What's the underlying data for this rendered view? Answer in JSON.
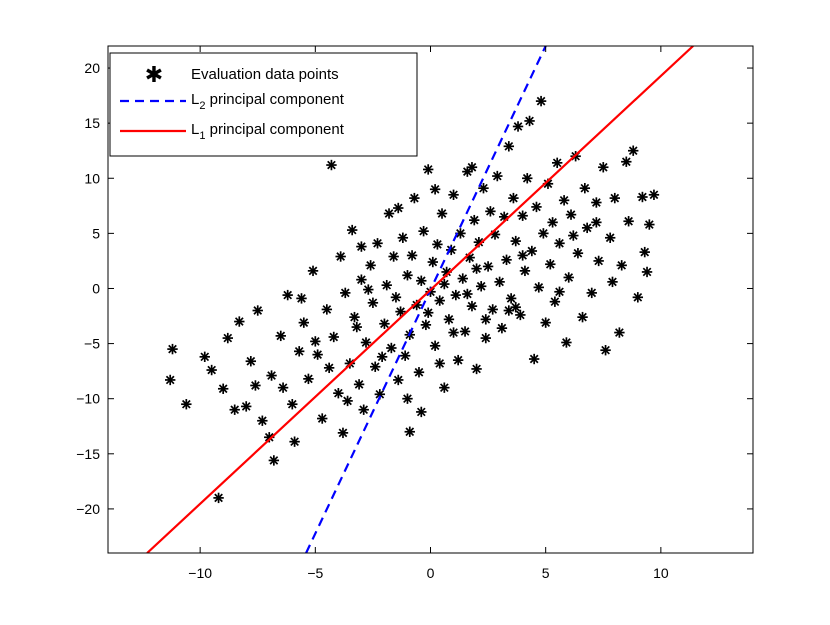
{
  "chart_data": {
    "type": "scatter",
    "title": "",
    "xlabel": "",
    "ylabel": "",
    "xlim": [
      -14,
      14
    ],
    "ylim": [
      -24,
      22
    ],
    "xticks": [
      -10,
      -5,
      0,
      5,
      10
    ],
    "yticks": [
      -20,
      -15,
      -10,
      -5,
      0,
      5,
      10,
      15,
      20
    ],
    "tick_labels_x": [
      "−10",
      "−5",
      "0",
      "5",
      "10"
    ],
    "tick_labels_y": [
      "−20",
      "−15",
      "−10",
      "−5",
      "0",
      "5",
      "10",
      "15",
      "20"
    ],
    "grid": false,
    "legend_position": "top-left",
    "series": [
      {
        "name": "Evaluation data points",
        "kind": "points",
        "marker": "asterisk",
        "color": "#000000",
        "points": [
          [
            -11.2,
            -5.5
          ],
          [
            -11.3,
            -8.3
          ],
          [
            -10.6,
            -10.5
          ],
          [
            -9.8,
            -6.2
          ],
          [
            -9.5,
            -7.4
          ],
          [
            -9.2,
            -19.0
          ],
          [
            -9.0,
            -9.1
          ],
          [
            -8.8,
            -4.5
          ],
          [
            -8.5,
            -11.0
          ],
          [
            -8.3,
            -3.0
          ],
          [
            -8.0,
            -10.7
          ],
          [
            -7.8,
            -6.6
          ],
          [
            -7.5,
            -2.0
          ],
          [
            -7.3,
            -12.0
          ],
          [
            -7.0,
            -13.5
          ],
          [
            -6.8,
            -15.6
          ],
          [
            -6.9,
            -7.9
          ],
          [
            -6.5,
            -4.3
          ],
          [
            -6.2,
            -0.6
          ],
          [
            -6.0,
            -10.5
          ],
          [
            -5.9,
            -13.9
          ],
          [
            -5.7,
            -5.7
          ],
          [
            -5.5,
            -3.1
          ],
          [
            -5.3,
            -8.2
          ],
          [
            -5.1,
            1.6
          ],
          [
            -4.9,
            -6.0
          ],
          [
            -4.7,
            -11.8
          ],
          [
            -4.5,
            -1.9
          ],
          [
            -4.3,
            11.2
          ],
          [
            -4.2,
            -4.4
          ],
          [
            -4.0,
            -9.5
          ],
          [
            -3.9,
            2.9
          ],
          [
            -3.8,
            -13.1
          ],
          [
            -3.7,
            -0.4
          ],
          [
            -3.5,
            -6.8
          ],
          [
            -3.4,
            5.3
          ],
          [
            -3.3,
            -2.6
          ],
          [
            -3.1,
            -8.7
          ],
          [
            -3.0,
            0.8
          ],
          [
            -2.9,
            -11.0
          ],
          [
            -2.8,
            -4.9
          ],
          [
            -2.6,
            2.1
          ],
          [
            -2.5,
            -1.3
          ],
          [
            -2.4,
            -7.1
          ],
          [
            -2.3,
            4.1
          ],
          [
            -2.2,
            -9.6
          ],
          [
            -2.0,
            -3.2
          ],
          [
            -1.9,
            0.3
          ],
          [
            -1.8,
            6.8
          ],
          [
            -1.7,
            -5.4
          ],
          [
            -1.6,
            2.9
          ],
          [
            -1.5,
            -0.8
          ],
          [
            -1.4,
            -8.3
          ],
          [
            -1.3,
            -2.1
          ],
          [
            -1.2,
            4.6
          ],
          [
            -1.1,
            -6.1
          ],
          [
            -1.0,
            1.2
          ],
          [
            -0.9,
            -13.0
          ],
          [
            -0.9,
            -4.2
          ],
          [
            -0.8,
            3.0
          ],
          [
            -0.7,
            8.2
          ],
          [
            -0.6,
            -1.5
          ],
          [
            -0.5,
            -7.6
          ],
          [
            -0.4,
            0.7
          ],
          [
            -0.3,
            5.2
          ],
          [
            -0.2,
            -3.3
          ],
          [
            -0.1,
            10.8
          ],
          [
            0.0,
            -0.3
          ],
          [
            0.1,
            2.4
          ],
          [
            0.2,
            -5.2
          ],
          [
            0.3,
            4.0
          ],
          [
            0.4,
            -1.1
          ],
          [
            0.5,
            6.8
          ],
          [
            0.6,
            -9.0
          ],
          [
            0.7,
            1.5
          ],
          [
            0.8,
            -2.8
          ],
          [
            0.9,
            3.5
          ],
          [
            1.0,
            8.5
          ],
          [
            1.1,
            -0.6
          ],
          [
            1.2,
            -6.5
          ],
          [
            1.3,
            5.0
          ],
          [
            1.4,
            0.9
          ],
          [
            1.5,
            -3.9
          ],
          [
            1.6,
            10.6
          ],
          [
            1.7,
            2.8
          ],
          [
            1.8,
            -1.6
          ],
          [
            1.9,
            6.2
          ],
          [
            2.0,
            -7.3
          ],
          [
            2.1,
            4.2
          ],
          [
            2.2,
            0.2
          ],
          [
            2.3,
            9.1
          ],
          [
            2.4,
            -4.5
          ],
          [
            2.5,
            2.0
          ],
          [
            2.6,
            7.0
          ],
          [
            2.7,
            -1.9
          ],
          [
            2.8,
            4.9
          ],
          [
            2.9,
            10.2
          ],
          [
            3.0,
            0.6
          ],
          [
            3.1,
            -3.6
          ],
          [
            3.2,
            6.5
          ],
          [
            3.3,
            2.6
          ],
          [
            3.4,
            12.9
          ],
          [
            3.5,
            -0.9
          ],
          [
            3.6,
            8.2
          ],
          [
            3.7,
            4.3
          ],
          [
            3.8,
            14.7
          ],
          [
            3.9,
            -2.4
          ],
          [
            4.0,
            6.6
          ],
          [
            4.1,
            1.6
          ],
          [
            4.2,
            10.0
          ],
          [
            4.3,
            15.2
          ],
          [
            4.4,
            3.4
          ],
          [
            4.5,
            -6.4
          ],
          [
            4.6,
            7.4
          ],
          [
            4.7,
            0.1
          ],
          [
            4.8,
            17.0
          ],
          [
            4.9,
            5.0
          ],
          [
            5.0,
            -3.1
          ],
          [
            5.1,
            9.5
          ],
          [
            5.2,
            2.2
          ],
          [
            5.3,
            6.0
          ],
          [
            5.4,
            -1.2
          ],
          [
            5.5,
            11.4
          ],
          [
            5.6,
            4.1
          ],
          [
            5.8,
            8.0
          ],
          [
            5.9,
            -4.9
          ],
          [
            6.0,
            1.0
          ],
          [
            6.1,
            6.7
          ],
          [
            6.3,
            12.0
          ],
          [
            6.4,
            3.2
          ],
          [
            6.6,
            -2.6
          ],
          [
            6.7,
            9.1
          ],
          [
            6.8,
            5.5
          ],
          [
            7.0,
            -0.4
          ],
          [
            7.2,
            7.8
          ],
          [
            7.3,
            2.5
          ],
          [
            7.5,
            11.0
          ],
          [
            7.6,
            -5.6
          ],
          [
            7.8,
            4.6
          ],
          [
            7.9,
            0.6
          ],
          [
            8.0,
            8.2
          ],
          [
            8.2,
            -4.0
          ],
          [
            8.3,
            2.1
          ],
          [
            8.5,
            11.5
          ],
          [
            8.6,
            6.1
          ],
          [
            8.8,
            12.5
          ],
          [
            9.0,
            -0.8
          ],
          [
            9.2,
            8.3
          ],
          [
            9.3,
            3.3
          ],
          [
            9.4,
            1.5
          ],
          [
            9.5,
            5.8
          ],
          [
            9.7,
            8.5
          ],
          [
            -6.4,
            -9.0
          ],
          [
            -5.0,
            -4.8
          ],
          [
            -3.6,
            -10.2
          ],
          [
            -2.1,
            -6.2
          ],
          [
            -0.4,
            -11.2
          ],
          [
            1.0,
            -4.0
          ],
          [
            2.4,
            -2.8
          ],
          [
            3.7,
            -1.7
          ],
          [
            -7.6,
            -8.8
          ],
          [
            -4.4,
            -7.2
          ],
          [
            -1.0,
            -10.0
          ],
          [
            0.4,
            -6.8
          ],
          [
            3.4,
            -2.0
          ],
          [
            5.6,
            -0.3
          ],
          [
            -3.0,
            3.8
          ],
          [
            -1.4,
            7.3
          ],
          [
            0.2,
            9.0
          ],
          [
            1.8,
            11.0
          ],
          [
            -5.6,
            -0.9
          ],
          [
            -3.2,
            -3.5
          ],
          [
            -0.1,
            -2.2
          ],
          [
            2.0,
            1.8
          ],
          [
            4.0,
            3.0
          ],
          [
            6.2,
            4.8
          ],
          [
            7.2,
            6.0
          ],
          [
            -2.7,
            -0.1
          ],
          [
            0.6,
            0.4
          ],
          [
            1.6,
            -0.5
          ]
        ]
      },
      {
        "name": "L₂ principal component",
        "kind": "line",
        "style": "dashed",
        "color": "#0000ff",
        "points": [
          [
            -5.4,
            -24
          ],
          [
            5.0,
            22
          ]
        ]
      },
      {
        "name": "L₁ principal component",
        "kind": "line",
        "style": "solid",
        "color": "#ff0000",
        "points": [
          [
            -12.3,
            -24
          ],
          [
            11.4,
            22
          ]
        ]
      }
    ],
    "legend": [
      {
        "label": "Evaluation data points",
        "base": "Evaluation data points",
        "sub": "",
        "rest": ""
      },
      {
        "label": "L2 principal component",
        "base": "L",
        "sub": "2",
        "rest": " principal component"
      },
      {
        "label": "L1 principal component",
        "base": "L",
        "sub": "1",
        "rest": " principal component"
      }
    ]
  }
}
